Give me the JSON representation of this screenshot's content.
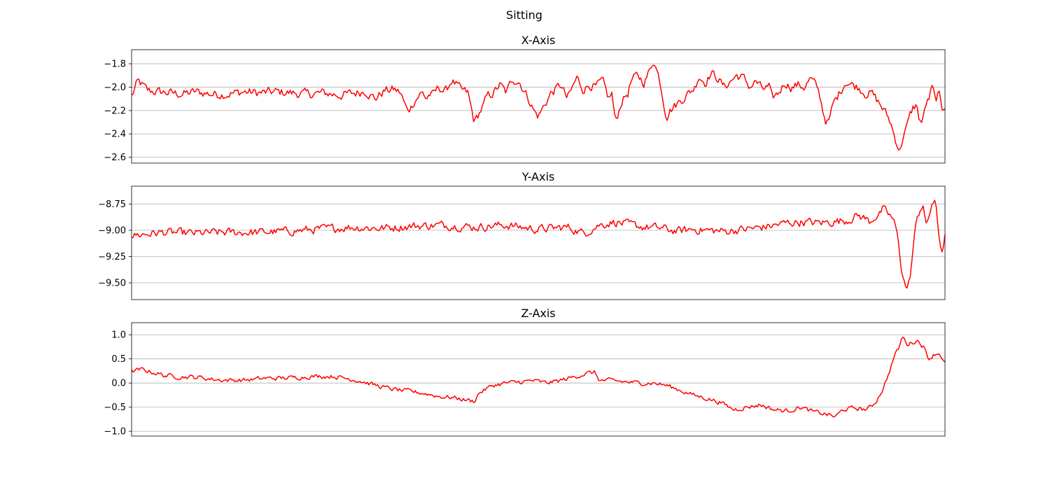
{
  "chart_data": {
    "type": "line",
    "title": "Sitting",
    "color": "#ff0000",
    "grid": "y-only",
    "subplots": [
      {
        "title": "X-Axis",
        "ylim": [
          -2.65,
          -1.68
        ],
        "yticks": [
          -1.8,
          -2.0,
          -2.2,
          -2.4,
          -2.6
        ],
        "ytick_labels": [
          "−1.8",
          "−2.0",
          "−2.2",
          "−2.4",
          "−2.6"
        ],
        "anchors": [
          [
            0,
            -2.08
          ],
          [
            2,
            -1.95
          ],
          [
            5,
            -2.03
          ],
          [
            8,
            -2.04
          ],
          [
            12,
            -2.05
          ],
          [
            16,
            -2.06
          ],
          [
            20,
            -2.04
          ],
          [
            25,
            -2.06
          ],
          [
            30,
            -2.06
          ],
          [
            35,
            -2.04
          ],
          [
            40,
            -2.05
          ],
          [
            45,
            -2.04
          ],
          [
            50,
            -2.05
          ],
          [
            55,
            -2.06
          ],
          [
            60,
            -2.05
          ],
          [
            65,
            -2.07
          ],
          [
            70,
            -2.05
          ],
          [
            73,
            -2.03
          ],
          [
            76,
            -2.1
          ],
          [
            79,
            -2.03
          ],
          [
            82,
            -2.02
          ],
          [
            84,
            -2.05
          ],
          [
            86,
            -2.2
          ],
          [
            87,
            -2.18
          ],
          [
            88,
            -2.13
          ],
          [
            90,
            -2.06
          ],
          [
            91,
            -2.05
          ],
          [
            92,
            -2.1
          ],
          [
            93,
            -2.06
          ],
          [
            94,
            -2.07
          ],
          [
            96,
            -2.0
          ],
          [
            98,
            -2.04
          ],
          [
            100,
            -1.94
          ],
          [
            103,
            -2.03
          ],
          [
            105,
            -2.05
          ],
          [
            107,
            -2.3
          ],
          [
            108,
            -2.25
          ],
          [
            110,
            -2.15
          ],
          [
            111,
            -2.08
          ],
          [
            113,
            -2.05
          ],
          [
            115,
            -1.98
          ],
          [
            117,
            -2.05
          ],
          [
            119,
            -1.93
          ],
          [
            121,
            -1.95
          ],
          [
            123,
            -2.05
          ],
          [
            124,
            -2.1
          ],
          [
            126,
            -2.22
          ],
          [
            127,
            -2.25
          ],
          [
            129,
            -2.15
          ],
          [
            131,
            -2.05
          ],
          [
            132,
            -2.03
          ],
          [
            134,
            -1.98
          ],
          [
            136,
            -2.1
          ],
          [
            137,
            -2.05
          ],
          [
            139,
            -1.92
          ],
          [
            141,
            -2.02
          ],
          [
            143,
            -1.98
          ],
          [
            145,
            -2.0
          ],
          [
            147,
            -1.95
          ],
          [
            149,
            -2.1
          ],
          [
            150,
            -2.05
          ],
          [
            151,
            -2.3
          ],
          [
            152,
            -2.22
          ],
          [
            153,
            -2.12
          ],
          [
            155,
            -2.05
          ],
          [
            156,
            -1.95
          ],
          [
            158,
            -1.9
          ],
          [
            160,
            -1.96
          ],
          [
            162,
            -1.85
          ],
          [
            163,
            -1.76
          ],
          [
            164,
            -1.85
          ],
          [
            165,
            -1.95
          ],
          [
            166,
            -2.1
          ],
          [
            167,
            -2.25
          ],
          [
            168,
            -2.2
          ],
          [
            170,
            -2.15
          ],
          [
            172,
            -2.1
          ],
          [
            174,
            -2.05
          ],
          [
            176,
            -2.0
          ],
          [
            177,
            -1.9
          ],
          [
            179,
            -1.96
          ],
          [
            181,
            -1.88
          ],
          [
            183,
            -1.92
          ],
          [
            185,
            -2.0
          ],
          [
            187,
            -1.95
          ],
          [
            189,
            -1.9
          ],
          [
            191,
            -1.92
          ],
          [
            193,
            -2.0
          ],
          [
            195,
            -1.95
          ],
          [
            197,
            -2.02
          ],
          [
            199,
            -2.0
          ],
          [
            200,
            -2.1
          ],
          [
            202,
            -2.05
          ],
          [
            204,
            -1.96
          ],
          [
            206,
            -2.0
          ],
          [
            208,
            -1.98
          ],
          [
            210,
            -2.0
          ],
          [
            212,
            -1.93
          ],
          [
            214,
            -2.0
          ],
          [
            215,
            -2.08
          ],
          [
            216,
            -2.22
          ],
          [
            217,
            -2.3
          ],
          [
            218,
            -2.28
          ],
          [
            219,
            -2.15
          ],
          [
            221,
            -2.05
          ],
          [
            223,
            -1.95
          ],
          [
            225,
            -1.98
          ],
          [
            227,
            -2.0
          ],
          [
            229,
            -2.05
          ],
          [
            231,
            -2.05
          ],
          [
            233,
            -2.12
          ],
          [
            235,
            -2.2
          ],
          [
            237,
            -2.3
          ],
          [
            238,
            -2.4
          ],
          [
            239,
            -2.48
          ],
          [
            240,
            -2.55
          ],
          [
            241,
            -2.4
          ],
          [
            242,
            -2.35
          ],
          [
            243,
            -2.25
          ],
          [
            244,
            -2.18
          ],
          [
            245,
            -2.15
          ],
          [
            246,
            -2.28
          ],
          [
            247,
            -2.3
          ],
          [
            248,
            -2.15
          ],
          [
            249,
            -2.1
          ],
          [
            250,
            -2.0
          ],
          [
            251,
            -2.12
          ],
          [
            252,
            -2.05
          ],
          [
            253,
            -2.2
          ],
          [
            254,
            -2.15
          ]
        ],
        "noise": 0.035
      },
      {
        "title": "Y-Axis",
        "ylim": [
          -9.66,
          -8.58
        ],
        "yticks": [
          -8.75,
          -9.0,
          -9.25,
          -9.5
        ],
        "ytick_labels": [
          "−8.75",
          "−9.00",
          "−9.25",
          "−9.50"
        ],
        "anchors": [
          [
            0,
            -9.05
          ],
          [
            10,
            -9.02
          ],
          [
            20,
            -9.03
          ],
          [
            30,
            -9.02
          ],
          [
            40,
            -9.02
          ],
          [
            50,
            -9.01
          ],
          [
            60,
            -8.99
          ],
          [
            70,
            -8.97
          ],
          [
            80,
            -8.98
          ],
          [
            90,
            -8.96
          ],
          [
            100,
            -8.95
          ],
          [
            110,
            -8.97
          ],
          [
            120,
            -8.95
          ],
          [
            130,
            -8.99
          ],
          [
            140,
            -8.97
          ],
          [
            145,
            -9.03
          ],
          [
            150,
            -8.95
          ],
          [
            155,
            -8.92
          ],
          [
            160,
            -8.95
          ],
          [
            165,
            -8.97
          ],
          [
            170,
            -8.98
          ],
          [
            175,
            -9.01
          ],
          [
            180,
            -8.99
          ],
          [
            190,
            -9.01
          ],
          [
            200,
            -8.98
          ],
          [
            205,
            -8.96
          ],
          [
            210,
            -8.93
          ],
          [
            215,
            -8.92
          ],
          [
            220,
            -8.93
          ],
          [
            225,
            -8.92
          ],
          [
            230,
            -8.9
          ],
          [
            233,
            -8.86
          ],
          [
            235,
            -8.88
          ],
          [
            237,
            -8.92
          ],
          [
            238,
            -8.88
          ],
          [
            240,
            -8.85
          ],
          [
            241,
            -8.8
          ],
          [
            243,
            -8.85
          ],
          [
            244,
            -8.88
          ],
          [
            245,
            -8.95
          ],
          [
            246,
            -9.1
          ],
          [
            247,
            -9.35
          ],
          [
            248,
            -9.5
          ],
          [
            249,
            -9.57
          ],
          [
            250,
            -9.4
          ],
          [
            251,
            -9.1
          ],
          [
            252,
            -8.9
          ],
          [
            253,
            -8.8
          ],
          [
            254,
            -8.75
          ],
          [
            255,
            -8.98
          ],
          [
            256,
            -8.85
          ],
          [
            257,
            -8.72
          ],
          [
            258,
            -8.75
          ],
          [
            259,
            -9.05
          ],
          [
            260,
            -9.2
          ],
          [
            261,
            -9.05
          ]
        ],
        "noise": 0.035
      },
      {
        "title": "Z-Axis",
        "ylim": [
          -1.1,
          1.25
        ],
        "yticks": [
          1.0,
          0.5,
          0.0,
          -0.5,
          -1.0
        ],
        "ytick_labels": [
          "1.0",
          "0.5",
          "0.0",
          "−0.5",
          "−1.0"
        ],
        "anchors": [
          [
            0,
            0.24
          ],
          [
            4,
            0.28
          ],
          [
            8,
            0.22
          ],
          [
            12,
            0.16
          ],
          [
            18,
            0.13
          ],
          [
            25,
            0.12
          ],
          [
            30,
            0.08
          ],
          [
            35,
            0.06
          ],
          [
            40,
            0.06
          ],
          [
            45,
            0.07
          ],
          [
            50,
            0.1
          ],
          [
            55,
            0.1
          ],
          [
            60,
            0.11
          ],
          [
            65,
            0.13
          ],
          [
            70,
            0.14
          ],
          [
            75,
            0.14
          ],
          [
            80,
            0.1
          ],
          [
            85,
            0.05
          ],
          [
            90,
            -0.03
          ],
          [
            95,
            -0.1
          ],
          [
            100,
            -0.15
          ],
          [
            105,
            -0.18
          ],
          [
            110,
            -0.22
          ],
          [
            115,
            -0.28
          ],
          [
            120,
            -0.3
          ],
          [
            125,
            -0.35
          ],
          [
            128,
            -0.38
          ],
          [
            130,
            -0.2
          ],
          [
            135,
            -0.05
          ],
          [
            140,
            0.0
          ],
          [
            145,
            0.02
          ],
          [
            150,
            0.05
          ],
          [
            155,
            0.0
          ],
          [
            160,
            0.05
          ],
          [
            165,
            0.12
          ],
          [
            170,
            0.2
          ],
          [
            173,
            0.22
          ],
          [
            175,
            0.05
          ],
          [
            180,
            0.05
          ],
          [
            185,
            0.02
          ],
          [
            190,
            0.0
          ],
          [
            195,
            0.0
          ],
          [
            200,
            -0.05
          ],
          [
            205,
            -0.15
          ],
          [
            210,
            -0.25
          ],
          [
            215,
            -0.32
          ],
          [
            220,
            -0.4
          ],
          [
            225,
            -0.55
          ],
          [
            230,
            -0.5
          ],
          [
            235,
            -0.45
          ],
          [
            240,
            -0.55
          ],
          [
            245,
            -0.58
          ],
          [
            250,
            -0.5
          ],
          [
            255,
            -0.6
          ],
          [
            260,
            -0.65
          ],
          [
            263,
            -0.7
          ],
          [
            266,
            -0.55
          ],
          [
            270,
            -0.52
          ],
          [
            275,
            -0.55
          ],
          [
            278,
            -0.4
          ],
          [
            281,
            -0.1
          ],
          [
            283,
            0.2
          ],
          [
            285,
            0.55
          ],
          [
            287,
            0.75
          ],
          [
            288,
            0.97
          ],
          [
            290,
            0.8
          ],
          [
            292,
            0.85
          ],
          [
            294,
            0.88
          ],
          [
            296,
            0.75
          ],
          [
            298,
            0.5
          ],
          [
            300,
            0.6
          ],
          [
            302,
            0.62
          ],
          [
            304,
            0.4
          ]
        ],
        "noise": 0.04
      }
    ]
  }
}
